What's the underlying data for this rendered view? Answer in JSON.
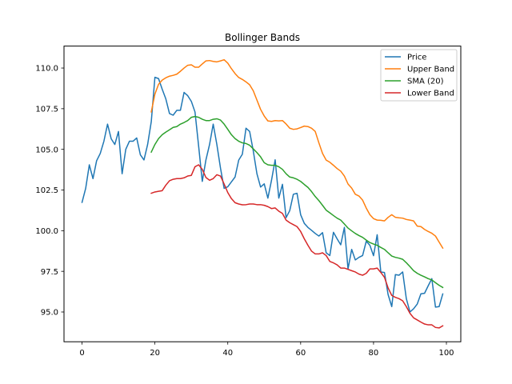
{
  "chart_data": {
    "type": "line",
    "title": "Bollinger Bands",
    "xlabel": "",
    "ylabel": "",
    "xlim": [
      -4.95,
      103.95
    ],
    "ylim": [
      93.17,
      111.35
    ],
    "x_ticks": [
      0,
      20,
      40,
      60,
      80,
      100
    ],
    "x_tick_labels": [
      "0",
      "20",
      "40",
      "60",
      "80",
      "100"
    ],
    "y_ticks": [
      95.0,
      97.5,
      100.0,
      102.5,
      105.0,
      107.5,
      110.0
    ],
    "y_tick_labels": [
      "95.0",
      "97.5",
      "100.0",
      "102.5",
      "105.0",
      "107.5",
      "110.0"
    ],
    "grid": false,
    "legend_position": "upper right",
    "series": [
      {
        "name": "Price",
        "color": "#1f77b4",
        "x_start": 0,
        "values": [
          101.74,
          102.6,
          104.05,
          103.2,
          104.3,
          104.75,
          105.5,
          106.55,
          105.65,
          105.3,
          106.1,
          103.5,
          105.0,
          105.5,
          105.5,
          105.7,
          104.67,
          104.35,
          105.3,
          106.7,
          109.43,
          109.35,
          108.7,
          108.1,
          107.2,
          107.1,
          107.4,
          107.4,
          108.5,
          108.3,
          107.95,
          107.3,
          105.2,
          103.03,
          104.35,
          105.3,
          106.55,
          105.3,
          103.85,
          102.6,
          102.7,
          103.0,
          103.3,
          104.34,
          104.7,
          106.3,
          106.1,
          104.9,
          103.5,
          102.68,
          102.88,
          102.0,
          103.1,
          104.36,
          102.0,
          102.85,
          100.8,
          101.23,
          102.24,
          102.3,
          100.98,
          100.45,
          100.2,
          100.02,
          99.83,
          99.67,
          99.88,
          98.64,
          98.47,
          99.9,
          99.5,
          99.13,
          100.2,
          97.65,
          98.85,
          98.2,
          98.36,
          98.47,
          99.35,
          99.1,
          98.46,
          99.75,
          97.46,
          97.43,
          96.07,
          95.33,
          97.3,
          97.26,
          97.46,
          95.82,
          95.0,
          95.2,
          95.49,
          96.12,
          96.15,
          96.61,
          97.05,
          95.3,
          95.33,
          96.11
        ]
      },
      {
        "name": "Upper Band",
        "color": "#ff7f0e",
        "x_start": 19,
        "values": [
          107.3,
          108.4,
          109.0,
          109.26,
          109.4,
          109.5,
          109.55,
          109.62,
          109.8,
          110.0,
          110.17,
          110.2,
          110.05,
          110.05,
          110.25,
          110.44,
          110.46,
          110.41,
          110.38,
          110.44,
          110.51,
          110.3,
          109.96,
          109.66,
          109.42,
          109.3,
          109.15,
          108.97,
          108.6,
          108.03,
          107.46,
          107.05,
          106.75,
          106.72,
          106.77,
          106.75,
          106.77,
          106.56,
          106.3,
          106.23,
          106.26,
          106.34,
          106.43,
          106.4,
          106.3,
          106.1,
          105.4,
          104.75,
          104.34,
          104.21,
          104.02,
          103.82,
          103.66,
          103.36,
          102.87,
          102.62,
          102.24,
          102.13,
          101.88,
          101.39,
          100.98,
          100.74,
          100.65,
          100.64,
          100.6,
          100.82,
          100.98,
          100.82,
          100.79,
          100.77,
          100.69,
          100.65,
          100.6,
          100.28,
          100.25,
          100.08,
          99.95,
          99.84,
          99.67,
          99.3,
          98.93
        ]
      },
      {
        "name": "SMA (20)",
        "color": "#2ca02c",
        "x_start": 19,
        "values": [
          104.83,
          105.3,
          105.66,
          105.9,
          106.06,
          106.2,
          106.35,
          106.4,
          106.55,
          106.65,
          106.77,
          106.97,
          107.02,
          106.97,
          106.85,
          106.77,
          106.77,
          106.85,
          106.88,
          106.8,
          106.55,
          106.23,
          105.9,
          105.66,
          105.5,
          105.4,
          105.36,
          105.25,
          105.03,
          104.8,
          104.54,
          104.18,
          104.05,
          104.02,
          104.02,
          103.93,
          103.77,
          103.5,
          103.3,
          103.25,
          103.16,
          103.03,
          102.84,
          102.66,
          102.4,
          102.1,
          101.85,
          101.56,
          101.26,
          101.1,
          100.93,
          100.77,
          100.65,
          100.41,
          100.16,
          99.99,
          99.83,
          99.7,
          99.59,
          99.42,
          99.27,
          99.18,
          99.1,
          98.97,
          98.85,
          98.64,
          98.44,
          98.36,
          98.31,
          98.24,
          98.03,
          97.79,
          97.54,
          97.38,
          97.26,
          97.16,
          97.05,
          96.97,
          96.8,
          96.64,
          96.51
        ]
      },
      {
        "name": "Lower Band",
        "color": "#d62728",
        "x_start": 19,
        "values": [
          102.3,
          102.38,
          102.42,
          102.46,
          102.8,
          103.07,
          103.16,
          103.2,
          103.2,
          103.25,
          103.36,
          103.4,
          103.93,
          104.05,
          103.77,
          103.27,
          103.1,
          103.2,
          103.44,
          103.36,
          102.87,
          102.34,
          101.97,
          101.72,
          101.64,
          101.59,
          101.6,
          101.64,
          101.64,
          101.6,
          101.6,
          101.56,
          101.48,
          101.36,
          101.4,
          101.2,
          101.06,
          100.65,
          100.49,
          100.37,
          100.25,
          99.95,
          99.5,
          99.1,
          98.74,
          98.57,
          98.57,
          98.64,
          98.47,
          98.11,
          98.02,
          97.9,
          97.7,
          97.7,
          97.62,
          97.54,
          97.46,
          97.33,
          97.26,
          97.38,
          97.65,
          97.65,
          97.7,
          97.43,
          97.13,
          96.48,
          96.02,
          95.9,
          95.82,
          95.69,
          95.33,
          94.92,
          94.64,
          94.51,
          94.38,
          94.26,
          94.21,
          94.21,
          94.05,
          94.02,
          94.15
        ]
      }
    ]
  }
}
